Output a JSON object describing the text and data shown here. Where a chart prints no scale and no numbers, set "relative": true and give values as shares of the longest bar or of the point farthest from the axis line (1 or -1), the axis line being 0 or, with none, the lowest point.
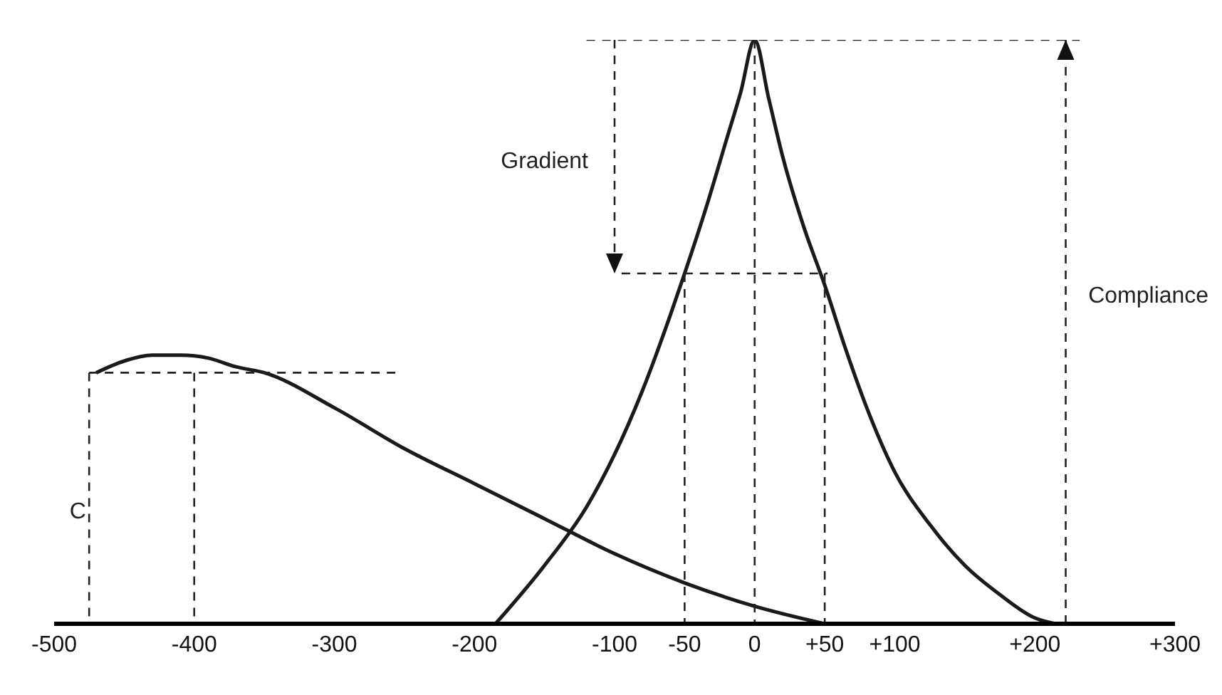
{
  "chart_data": {
    "type": "line",
    "relative": true,
    "xlim": [
      -500,
      300
    ],
    "xticks": [
      -500,
      -400,
      -300,
      -200,
      -100,
      -50,
      0,
      {
        "value": 50,
        "label": "+50"
      },
      {
        "value": 100,
        "label": "+100"
      },
      {
        "value": 200,
        "label": "+200"
      },
      {
        "value": 300,
        "label": "+300"
      }
    ],
    "series": [
      {
        "color": "#1a1a1a",
        "x": [
          -185,
          -150,
          -120,
          -100,
          -80,
          -60,
          -50,
          -35,
          -20,
          -10,
          0,
          10,
          20,
          35,
          50,
          65,
          80,
          100,
          125,
          150,
          175,
          200,
          215
        ],
        "values": [
          0,
          0.1,
          0.2,
          0.29,
          0.4,
          0.53,
          0.6,
          0.71,
          0.83,
          0.91,
          1,
          0.9,
          0.8,
          0.68,
          0.58,
          0.47,
          0.37,
          0.26,
          0.17,
          0.1,
          0.05,
          0.01,
          0
        ]
      },
      {
        "color": "#1a1a1a",
        "x": [
          -470,
          -450,
          -430,
          -410,
          -390,
          -370,
          -350,
          -300,
          -250,
          -200,
          -150,
          -100,
          -50,
          0,
          50
        ],
        "values": [
          0.43,
          0.45,
          0.46,
          0.46,
          0.455,
          0.44,
          0.43,
          0.37,
          0.3,
          0.24,
          0.18,
          0.12,
          0.07,
          0.03,
          0
        ]
      },
      {
        "color": "#222222",
        "line_style": "dashed",
        "x": [
          -120,
          232
        ],
        "values": [
          1,
          1
        ]
      },
      {
        "color": "#222222",
        "line_style": "dashed",
        "x": [
          -100,
          -100
        ],
        "values": [
          1,
          0.6
        ]
      },
      {
        "color": "#222222",
        "line_style": "dashed",
        "x": [
          -95,
          52
        ],
        "values": [
          0.6,
          0.6
        ]
      },
      {
        "color": "#222222",
        "line_style": "dashed",
        "x": [
          -50,
          -50
        ],
        "values": [
          0.6,
          0
        ]
      },
      {
        "color": "#222222",
        "line_style": "dashed",
        "x": [
          0,
          0
        ],
        "values": [
          1,
          0
        ]
      },
      {
        "color": "#222222",
        "line_style": "dashed",
        "x": [
          50,
          50
        ],
        "values": [
          0.6,
          0
        ]
      },
      {
        "color": "#222222",
        "line_style": "dashed",
        "x": [
          222,
          222
        ],
        "values": [
          0,
          1
        ]
      },
      {
        "color": "#222222",
        "line_style": "dashed",
        "x": [
          -475,
          -255
        ],
        "values": [
          0.43,
          0.43
        ]
      },
      {
        "color": "#222222",
        "line_style": "dashed",
        "x": [
          -475,
          -475
        ],
        "values": [
          0.43,
          0
        ]
      },
      {
        "color": "#222222",
        "line_style": "dashed",
        "x": [
          -400,
          -400
        ],
        "values": [
          0.43,
          0
        ]
      }
    ],
    "marker": "none",
    "line_style": "solid",
    "grid": false,
    "legend": false,
    "tick_labels": "x",
    "annotations": [
      "Gradient",
      "Compliance",
      "C"
    ]
  }
}
